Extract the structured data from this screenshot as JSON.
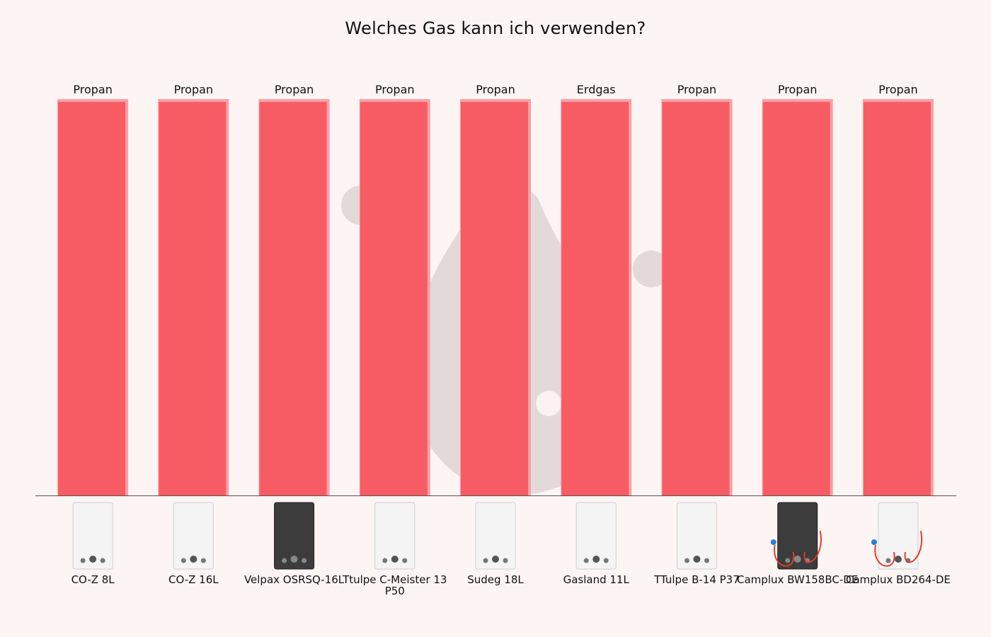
{
  "chart_data": {
    "type": "bar",
    "title": "Welches Gas kann ich verwenden?",
    "categories": [
      "CO-Z 8L",
      "CO-Z 16L",
      "Velpax OSRSQ-16L",
      "Ttulpe C-Meister 13 P50",
      "Sudeg 18L",
      "Gasland 11L",
      "TTulpe B-14 P37",
      "Camplux BW158BC-DE",
      "Camplux BD264-DE"
    ],
    "values": [
      1,
      1,
      1,
      1,
      1,
      1,
      1,
      1,
      1
    ],
    "data_labels": [
      "Propan",
      "Propan",
      "Propan",
      "Propan",
      "Propan",
      "Erdgas",
      "Propan",
      "Propan",
      "Propan"
    ],
    "ylim": [
      0,
      1
    ],
    "grid": false,
    "legend": "none",
    "colors": {
      "bar": "#f75c65",
      "bar_edge": "#f9a0a5",
      "background": "#fdf4f4",
      "watermark": "#d9cfcf"
    }
  },
  "icons": [
    "water-heater-icon",
    "gas-flame-watermark-icon"
  ]
}
